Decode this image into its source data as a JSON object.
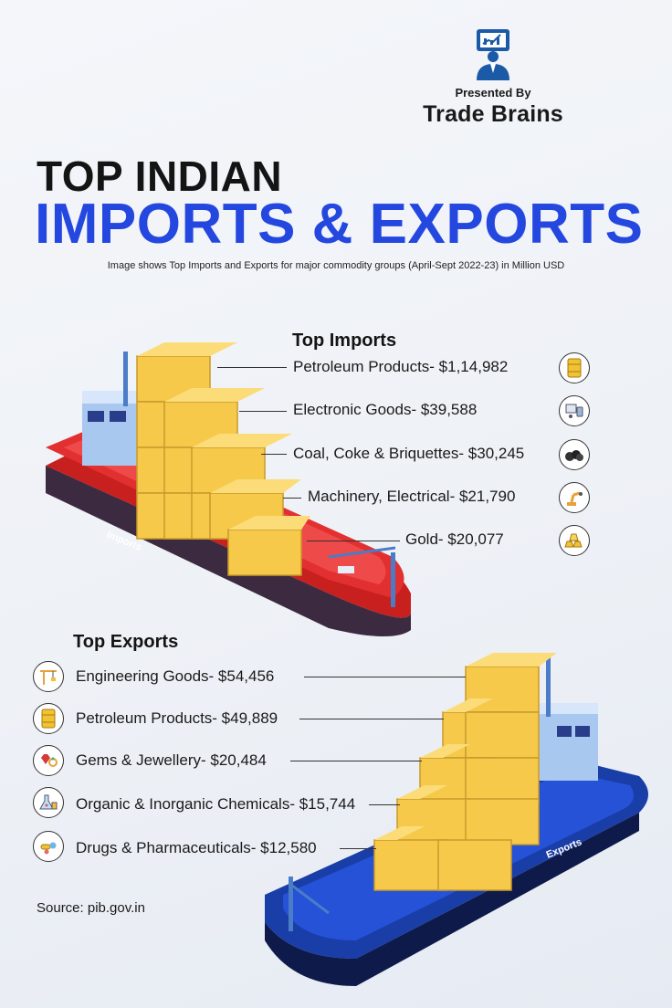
{
  "brand": {
    "presented_by": "Presented By",
    "name": "Trade Brains"
  },
  "title": {
    "line1": "TOP INDIAN",
    "line2": "IMPORTS & EXPORTS"
  },
  "subtitle": "Image shows Top Imports and Exports for major commodity groups (April-Sept 2022-23) in Million USD",
  "imports": {
    "heading": "Top Imports",
    "ship_label": "Imports",
    "items": [
      {
        "label": "Petroleum Products- $1,14,982",
        "icon": "oil-barrel-icon"
      },
      {
        "label": "Electronic Goods- $39,588",
        "icon": "electronics-icon"
      },
      {
        "label": "Coal, Coke & Briquettes- $30,245",
        "icon": "coal-icon"
      },
      {
        "label": "Machinery, Electrical- $21,790",
        "icon": "robot-arm-icon"
      },
      {
        "label": "Gold- $20,077",
        "icon": "gold-bars-icon"
      }
    ]
  },
  "exports": {
    "heading": "Top Exports",
    "ship_label": "Exports",
    "items": [
      {
        "label": "Engineering Goods- $54,456",
        "icon": "crane-icon"
      },
      {
        "label": "Petroleum Products- $49,889",
        "icon": "oil-barrel-icon"
      },
      {
        "label": "Gems & Jewellery- $20,484",
        "icon": "gems-icon"
      },
      {
        "label": "Organic & Inorganic Chemicals- $15,744",
        "icon": "chemicals-icon"
      },
      {
        "label": "Drugs & Pharmaceuticals- $12,580",
        "icon": "pills-icon"
      }
    ]
  },
  "source": "Source: pib.gov.in",
  "colors": {
    "accent_blue": "#2447e0",
    "import_ship": "#e02a2a",
    "export_ship": "#1f49c9",
    "container": "#f6c94a"
  }
}
